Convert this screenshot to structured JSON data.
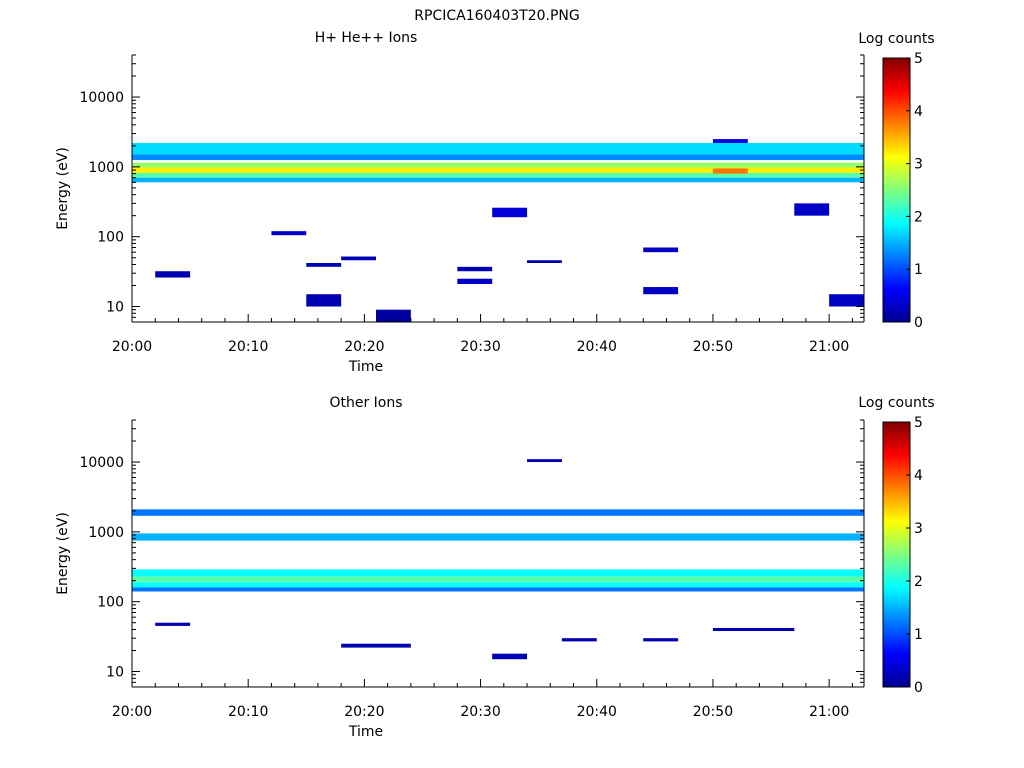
{
  "figure_title": "RPCICA160403T20.PNG",
  "chart_data": [
    {
      "type": "heatmap",
      "title": "H+ He++ Ions",
      "xlabel": "Time",
      "ylabel": "Energy (eV)",
      "x_range": [
        "20:00",
        "21:03"
      ],
      "y_range": [
        6,
        40000
      ],
      "y_scale": "log",
      "x_tick_labels": [
        "20:00",
        "20:10",
        "20:20",
        "20:30",
        "20:40",
        "20:50",
        "21:00"
      ],
      "y_tick_labels": [
        "10",
        "100",
        "1000",
        "10000"
      ],
      "colorbar": {
        "label": "Log counts",
        "range": [
          0,
          5
        ],
        "tick_labels": [
          "0",
          "1",
          "2",
          "3",
          "4",
          "5"
        ]
      },
      "cells": [
        {
          "x": [
            "20:02",
            "20:05"
          ],
          "y": [
            26,
            32
          ],
          "value": 0.2
        },
        {
          "x": [
            "20:15",
            "20:18"
          ],
          "y": [
            10,
            15
          ],
          "value": 0.2
        },
        {
          "x": [
            "20:21",
            "20:24"
          ],
          "y": [
            6,
            9
          ],
          "value": 0.1
        },
        {
          "x": [
            "20:28",
            "20:31"
          ],
          "y": [
            21,
            25
          ],
          "value": 0.3
        },
        {
          "x": [
            "20:28",
            "20:31"
          ],
          "y": [
            32,
            37
          ],
          "value": 0.2
        },
        {
          "x": [
            "20:44",
            "20:47"
          ],
          "y": [
            15,
            19
          ],
          "value": 0.3
        },
        {
          "x": [
            "21:00",
            "21:03"
          ],
          "y": [
            10,
            15
          ],
          "value": 0.3
        },
        {
          "x": [
            "20:12",
            "20:15"
          ],
          "y": [
            105,
            120
          ],
          "value": 0.3
        },
        {
          "x": [
            "20:15",
            "20:18"
          ],
          "y": [
            37,
            42
          ],
          "value": 0.2
        },
        {
          "x": [
            "20:18",
            "20:21"
          ],
          "y": [
            46,
            52
          ],
          "value": 0.2
        },
        {
          "x": [
            "20:31",
            "20:34"
          ],
          "y": [
            190,
            260
          ],
          "value": 0.4
        },
        {
          "x": [
            "20:34",
            "20:37"
          ],
          "y": [
            42,
            46
          ],
          "value": 0.2
        },
        {
          "x": [
            "20:44",
            "20:47"
          ],
          "y": [
            60,
            70
          ],
          "value": 0.3
        },
        {
          "x": [
            "20:57",
            "21:00"
          ],
          "y": [
            200,
            300
          ],
          "value": 0.3
        },
        {
          "x": [
            "20:50",
            "20:53"
          ],
          "y": [
            1500,
            2500
          ],
          "value": 0.5
        },
        {
          "x": [
            "20:00",
            "21:03"
          ],
          "y": [
            1500,
            2200
          ],
          "value": 1.7
        },
        {
          "x": [
            "20:00",
            "21:03"
          ],
          "y": [
            1250,
            1500
          ],
          "value": 1.3
        },
        {
          "x": [
            "20:00",
            "21:03"
          ],
          "y": [
            980,
            1150
          ],
          "value": 2.6
        },
        {
          "x": [
            "20:00",
            "21:03"
          ],
          "y": [
            820,
            980
          ],
          "value": 3.2
        },
        {
          "x": [
            "20:00",
            "21:03"
          ],
          "y": [
            700,
            820
          ],
          "value": 2.3
        },
        {
          "x": [
            "20:00",
            "21:03"
          ],
          "y": [
            600,
            700
          ],
          "value": 1.5
        },
        {
          "x": [
            "20:50",
            "20:53"
          ],
          "y": [
            800,
            950
          ],
          "value": 3.8
        }
      ]
    },
    {
      "type": "heatmap",
      "title": "Other Ions",
      "xlabel": "Time",
      "ylabel": "Energy (eV)",
      "x_range": [
        "20:00",
        "21:03"
      ],
      "y_range": [
        6,
        40000
      ],
      "y_scale": "log",
      "x_tick_labels": [
        "20:00",
        "20:10",
        "20:20",
        "20:30",
        "20:40",
        "20:50",
        "21:00"
      ],
      "y_tick_labels": [
        "10",
        "100",
        "1000",
        "10000"
      ],
      "colorbar": {
        "label": "Log counts",
        "range": [
          0,
          5
        ],
        "tick_labels": [
          "0",
          "1",
          "2",
          "3",
          "4",
          "5"
        ]
      },
      "cells": [
        {
          "x": [
            "20:00",
            "21:03"
          ],
          "y": [
            1700,
            2100
          ],
          "value": 1.2
        },
        {
          "x": [
            "20:00",
            "21:03"
          ],
          "y": [
            750,
            950
          ],
          "value": 1.5
        },
        {
          "x": [
            "20:00",
            "21:03"
          ],
          "y": [
            230,
            290
          ],
          "value": 1.9
        },
        {
          "x": [
            "20:00",
            "21:03"
          ],
          "y": [
            190,
            230
          ],
          "value": 2.3
        },
        {
          "x": [
            "20:00",
            "21:03"
          ],
          "y": [
            160,
            190
          ],
          "value": 1.9
        },
        {
          "x": [
            "20:00",
            "21:03"
          ],
          "y": [
            140,
            160
          ],
          "value": 1.2
        },
        {
          "x": [
            "20:02",
            "20:05"
          ],
          "y": [
            45,
            50
          ],
          "value": 0.2
        },
        {
          "x": [
            "20:18",
            "20:24"
          ],
          "y": [
            22,
            25
          ],
          "value": 0.2
        },
        {
          "x": [
            "20:31",
            "20:34"
          ],
          "y": [
            15,
            18
          ],
          "value": 0.2
        },
        {
          "x": [
            "20:34",
            "20:37"
          ],
          "y": [
            10000,
            11000
          ],
          "value": 0.2
        },
        {
          "x": [
            "20:37",
            "20:40"
          ],
          "y": [
            27,
            30
          ],
          "value": 0.2
        },
        {
          "x": [
            "20:44",
            "20:47"
          ],
          "y": [
            27,
            30
          ],
          "value": 0.2
        },
        {
          "x": [
            "20:50",
            "20:57"
          ],
          "y": [
            38,
            42
          ],
          "value": 0.2
        }
      ]
    }
  ]
}
